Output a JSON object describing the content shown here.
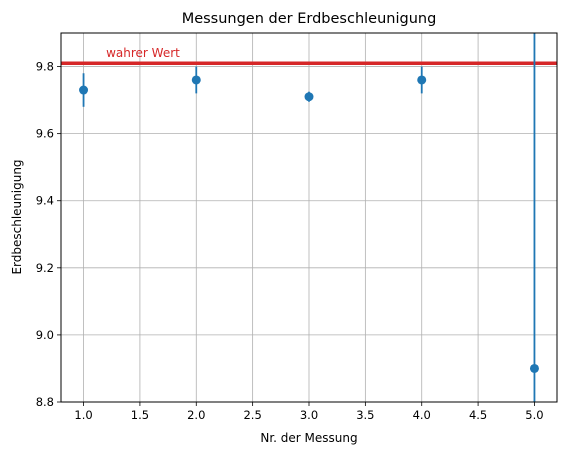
{
  "chart_data": {
    "type": "scatter",
    "title": "Messungen der Erdbeschleunigung",
    "xlabel": "Nr. der Messung",
    "ylabel": "Erdbeschleunigung",
    "xlim": [
      0.8,
      5.2
    ],
    "ylim": [
      8.8,
      9.9
    ],
    "x_ticks": [
      1.0,
      1.5,
      2.0,
      2.5,
      3.0,
      3.5,
      4.0,
      4.5,
      5.0
    ],
    "x_tick_labels": [
      "1.0",
      "1.5",
      "2.0",
      "2.5",
      "3.0",
      "3.5",
      "4.0",
      "4.5",
      "5.0"
    ],
    "y_ticks": [
      8.8,
      9.0,
      9.2,
      9.4,
      9.6,
      9.8
    ],
    "y_tick_labels": [
      "8.8",
      "9.0",
      "9.2",
      "9.4",
      "9.6",
      "9.8"
    ],
    "grid": true,
    "series": [
      {
        "x": [
          1,
          2,
          3,
          4,
          5
        ],
        "y": [
          9.73,
          9.76,
          9.71,
          9.76,
          8.9
        ],
        "yerr": [
          0.05,
          0.04,
          0.015,
          0.04,
          1.0
        ],
        "color": "#1f77b4"
      }
    ],
    "reference_line": {
      "y": 9.81,
      "label": "wahrer Wert",
      "color": "#d62728"
    }
  }
}
